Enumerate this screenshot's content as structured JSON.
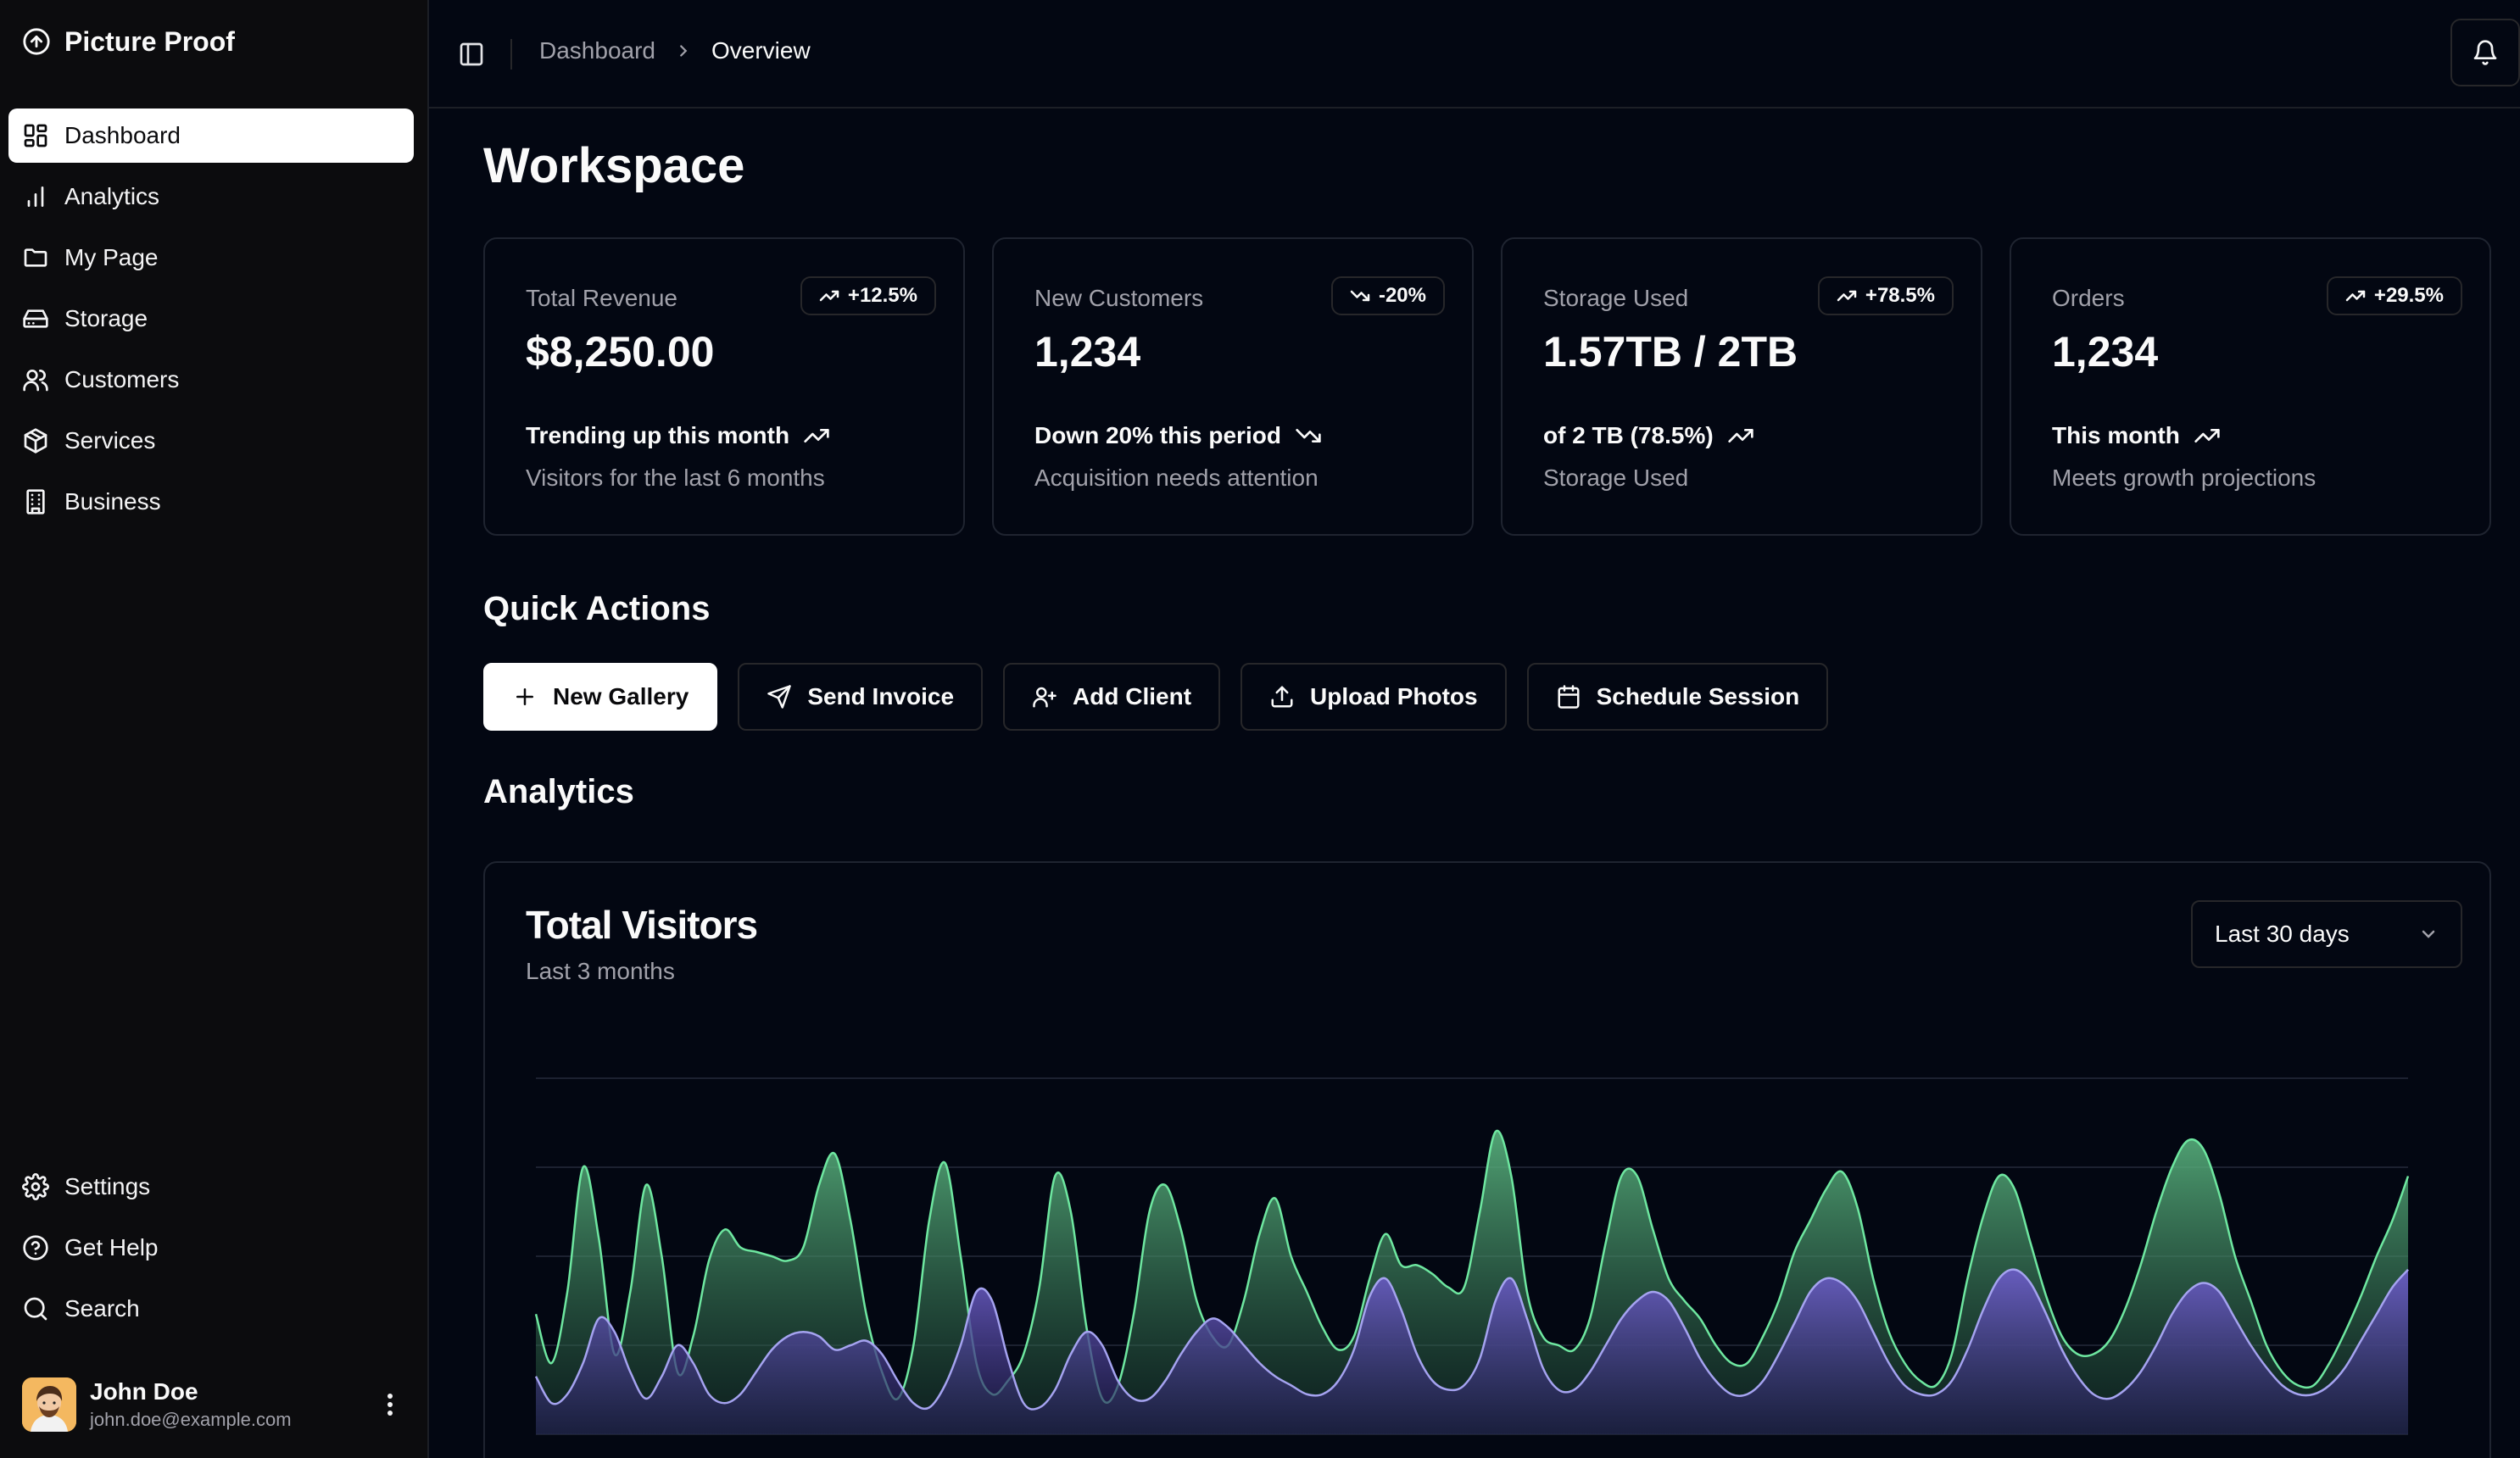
{
  "app": {
    "name": "Picture Proof"
  },
  "sidebar": {
    "items": [
      {
        "label": "Dashboard",
        "icon": "dashboard-icon",
        "active": true
      },
      {
        "label": "Analytics",
        "icon": "bar-chart-icon"
      },
      {
        "label": "My Page",
        "icon": "folder-icon"
      },
      {
        "label": "Storage",
        "icon": "hard-drive-icon"
      },
      {
        "label": "Customers",
        "icon": "users-icon"
      },
      {
        "label": "Services",
        "icon": "package-icon"
      },
      {
        "label": "Business",
        "icon": "building-icon"
      }
    ],
    "bottom_items": [
      {
        "label": "Settings",
        "icon": "gear-icon"
      },
      {
        "label": "Get Help",
        "icon": "help-circle-icon"
      },
      {
        "label": "Search",
        "icon": "search-icon"
      }
    ],
    "user": {
      "name": "John Doe",
      "email": "john.doe@example.com"
    }
  },
  "header": {
    "breadcrumb": {
      "parent": "Dashboard",
      "current": "Overview"
    }
  },
  "page": {
    "title": "Workspace"
  },
  "stats": [
    {
      "label": "Total Revenue",
      "badge": "+12.5%",
      "badge_direction": "up",
      "value": "$8,250.00",
      "trend": "Trending up this month",
      "trend_direction": "up",
      "sub": "Visitors for the last 6 months"
    },
    {
      "label": "New Customers",
      "badge": "-20%",
      "badge_direction": "down",
      "value": "1,234",
      "trend": "Down 20% this period",
      "trend_direction": "down",
      "sub": "Acquisition needs attention"
    },
    {
      "label": "Storage Used",
      "badge": "+78.5%",
      "badge_direction": "up",
      "value": "1.57TB / 2TB",
      "trend": "of 2 TB (78.5%)",
      "trend_direction": "up",
      "sub": "Storage Used"
    },
    {
      "label": "Orders",
      "badge": "+29.5%",
      "badge_direction": "up",
      "value": "1,234",
      "trend": "This month",
      "trend_direction": "up",
      "sub": "Meets growth projections"
    }
  ],
  "quick_actions": {
    "title": "Quick Actions",
    "buttons": [
      {
        "label": "New Gallery",
        "icon": "plus-icon",
        "primary": true
      },
      {
        "label": "Send Invoice",
        "icon": "send-icon"
      },
      {
        "label": "Add Client",
        "icon": "user-plus-icon"
      },
      {
        "label": "Upload Photos",
        "icon": "upload-icon"
      },
      {
        "label": "Schedule Session",
        "icon": "calendar-icon"
      }
    ]
  },
  "analytics": {
    "title": "Analytics",
    "card_title": "Total Visitors",
    "card_subtitle": "Last 3 months",
    "range_selected": "Last 30 days"
  },
  "colors": {
    "background": "#030712",
    "sidebar": "#0c0c0e",
    "series_primary": "#6ee7a0",
    "series_secondary": "#a5a3f0"
  },
  "chart_data": {
    "type": "area",
    "title": "Total Visitors",
    "subtitle": "Last 3 months",
    "grid": true,
    "ylim": [
      0,
      400
    ],
    "x": [
      1,
      2,
      3,
      4,
      5,
      6,
      7,
      8,
      9,
      10,
      11,
      12,
      13,
      14,
      15,
      16,
      17,
      18,
      19,
      20,
      21,
      22,
      23,
      24,
      25,
      26,
      27,
      28,
      29,
      30,
      31,
      32,
      33,
      34,
      35,
      36,
      37,
      38,
      39,
      40,
      41,
      42,
      43,
      44,
      45,
      46,
      47,
      48,
      49,
      50,
      51,
      52,
      53,
      54,
      55,
      56,
      57,
      58,
      59,
      60,
      61,
      62,
      63,
      64,
      65,
      66,
      67,
      68,
      69,
      70,
      71,
      72,
      73,
      74,
      75,
      76,
      77,
      78,
      79,
      80,
      81,
      82,
      83,
      84,
      85,
      86,
      87,
      88,
      89,
      90,
      91,
      92,
      93,
      94,
      95,
      96,
      97,
      98,
      99,
      100,
      101,
      102,
      103,
      104,
      105,
      106,
      107,
      108,
      109,
      110,
      111,
      112,
      113,
      114,
      115,
      116,
      117,
      118,
      119,
      120
    ],
    "series": [
      {
        "values": [
          135,
          80,
          160,
          300,
          220,
          90,
          160,
          280,
          200,
          70,
          110,
          195,
          230,
          210,
          205,
          200,
          195,
          210,
          280,
          315,
          240,
          135,
          70,
          40,
          100,
          240,
          305,
          200,
          80,
          45,
          60,
          90,
          165,
          290,
          250,
          120,
          40,
          55,
          135,
          250,
          280,
          230,
          150,
          110,
          100,
          150,
          225,
          265,
          200,
          160,
          120,
          95,
          110,
          175,
          225,
          190,
          190,
          180,
          165,
          165,
          250,
          340,
          290,
          160,
          110,
          100,
          95,
          130,
          215,
          290,
          290,
          230,
          175,
          150,
          130,
          100,
          80,
          80,
          110,
          150,
          205,
          240,
          275,
          295,
          255,
          175,
          115,
          80,
          60,
          55,
          90,
          175,
          245,
          290,
          275,
          215,
          155,
          110,
          90,
          90,
          105,
          140,
          190,
          250,
          300,
          330,
          320,
          270,
          200,
          150,
          100,
          70,
          55,
          55,
          80,
          115,
          155,
          200,
          240,
          290
        ]
      },
      {
        "values": [
          65,
          35,
          45,
          80,
          130,
          115,
          70,
          40,
          65,
          100,
          80,
          45,
          35,
          45,
          70,
          95,
          110,
          115,
          110,
          95,
          100,
          105,
          90,
          60,
          35,
          30,
          55,
          100,
          160,
          150,
          85,
          35,
          30,
          50,
          90,
          115,
          100,
          60,
          40,
          40,
          60,
          90,
          115,
          130,
          120,
          100,
          80,
          65,
          55,
          45,
          45,
          60,
          95,
          155,
          175,
          140,
          90,
          60,
          50,
          55,
          85,
          150,
          175,
          130,
          75,
          50,
          50,
          70,
          100,
          130,
          150,
          160,
          150,
          120,
          85,
          60,
          45,
          45,
          60,
          90,
          125,
          160,
          175,
          170,
          150,
          115,
          80,
          55,
          45,
          45,
          60,
          95,
          140,
          175,
          185,
          170,
          135,
          95,
          65,
          45,
          40,
          50,
          70,
          100,
          135,
          160,
          170,
          160,
          130,
          100,
          75,
          55,
          45,
          45,
          55,
          75,
          105,
          135,
          165,
          185
        ]
      }
    ]
  }
}
